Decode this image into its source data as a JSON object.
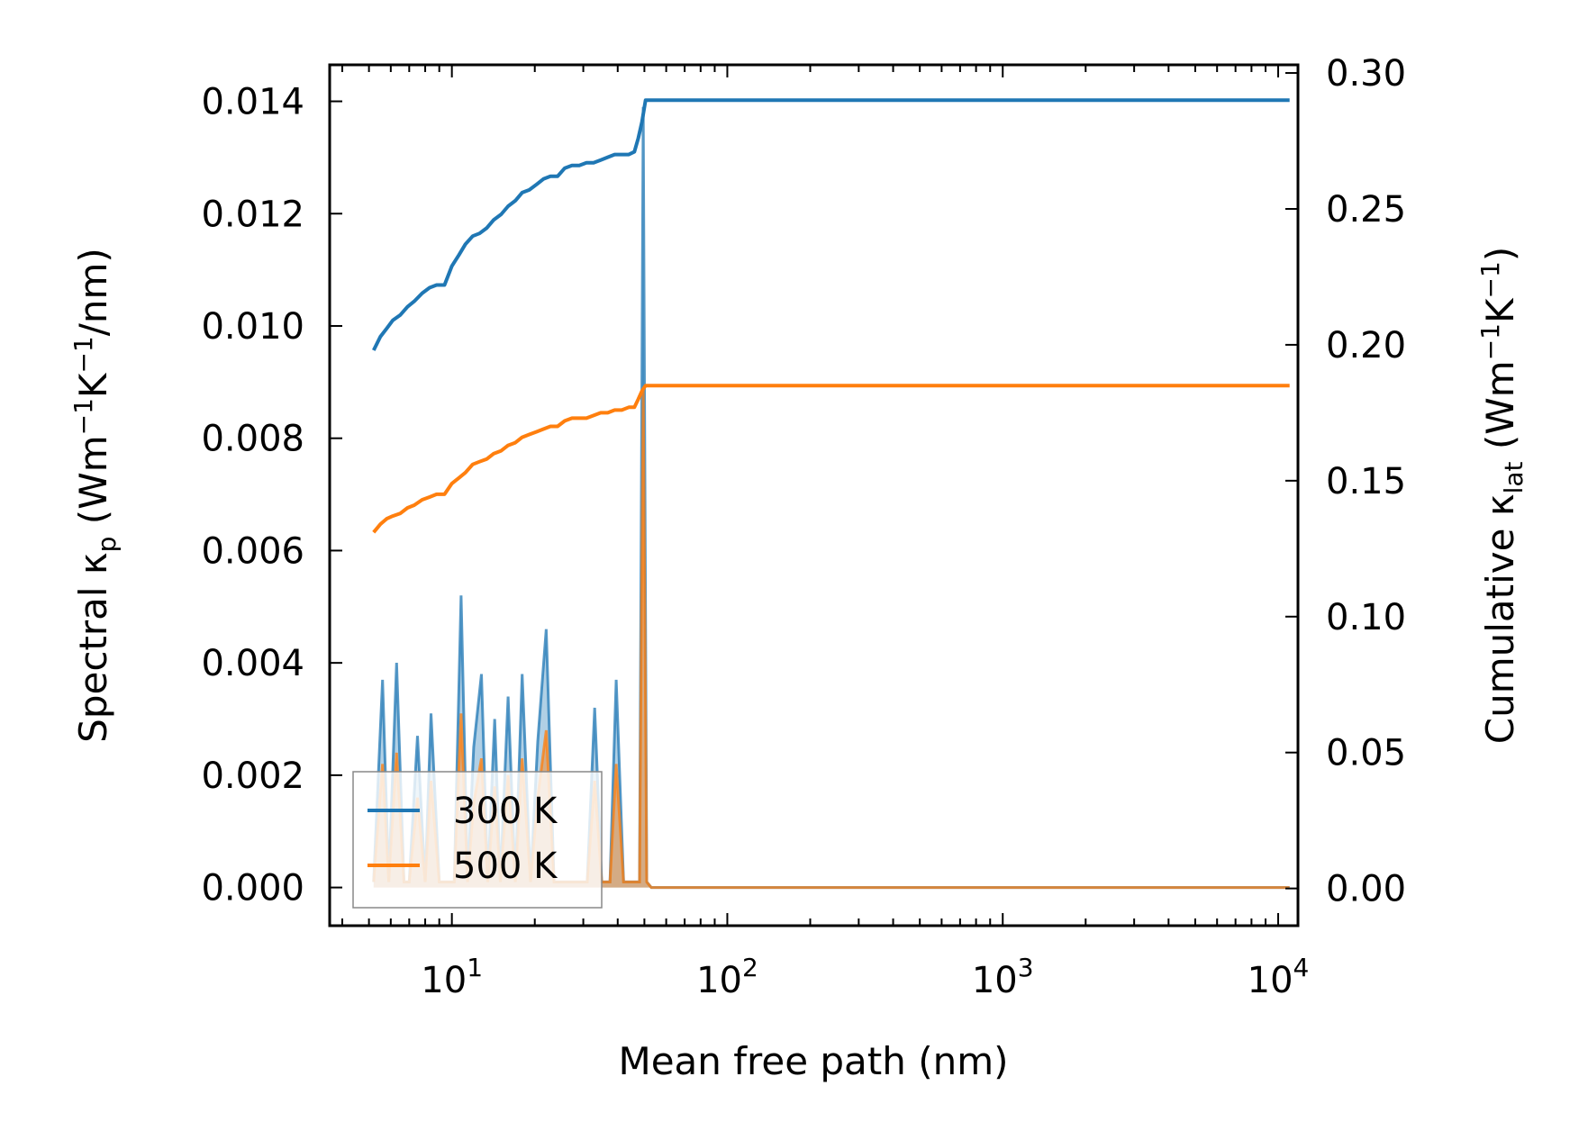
{
  "chart_data": {
    "type": "line",
    "xscale": "log",
    "xlim": [
      3.6,
      11800
    ],
    "ylim_left": [
      -0.00068,
      0.01465
    ],
    "ylim_right": [
      -0.0137,
      0.303
    ],
    "xlabel": "Mean free path (nm)",
    "ylabel_left_parts": [
      "Spectral κ",
      "p",
      " (Wm",
      "−1",
      "K",
      "−1",
      "/nm)"
    ],
    "ylabel_right_parts": [
      "Cumulative κ",
      "lat",
      " (Wm",
      "−1",
      "K",
      "−1",
      ")"
    ],
    "x_ticks": [
      {
        "value": 10,
        "base": "10",
        "exp": "1"
      },
      {
        "value": 100,
        "base": "10",
        "exp": "2"
      },
      {
        "value": 1000,
        "base": "10",
        "exp": "3"
      },
      {
        "value": 10000,
        "base": "10",
        "exp": "4"
      }
    ],
    "y_ticks_left": [
      {
        "value": 0.0,
        "label": "0.000"
      },
      {
        "value": 0.002,
        "label": "0.002"
      },
      {
        "value": 0.004,
        "label": "0.004"
      },
      {
        "value": 0.006,
        "label": "0.006"
      },
      {
        "value": 0.008,
        "label": "0.008"
      },
      {
        "value": 0.01,
        "label": "0.010"
      },
      {
        "value": 0.012,
        "label": "0.012"
      },
      {
        "value": 0.014,
        "label": "0.014"
      }
    ],
    "y_ticks_right": [
      {
        "value": 0.0,
        "label": "0.00"
      },
      {
        "value": 0.05,
        "label": "0.05"
      },
      {
        "value": 0.1,
        "label": "0.10"
      },
      {
        "value": 0.15,
        "label": "0.15"
      },
      {
        "value": 0.2,
        "label": "0.20"
      },
      {
        "value": 0.25,
        "label": "0.25"
      },
      {
        "value": 0.3,
        "label": "0.30"
      }
    ],
    "legend": {
      "placement": "lower-left",
      "entries": [
        "300 K",
        "500 K"
      ]
    },
    "series": [
      {
        "name": "300 K",
        "color": "#1f77b4",
        "spectral": {
          "x": [
            5.2,
            5.6,
            5.9,
            6.3,
            6.7,
            7.0,
            7.5,
            8.0,
            8.4,
            9.0,
            9.5,
            10.2,
            10.8,
            11.4,
            12.0,
            12.8,
            13.5,
            14.3,
            15.0,
            16.0,
            17.0,
            18.0,
            19.3,
            20.5,
            22.0,
            23.5,
            25.0,
            27.0,
            29.0,
            31.0,
            33.0,
            35.0,
            37.5,
            39.5,
            42.0,
            44.0,
            46.5,
            48.0,
            49.5,
            51.0,
            53.0,
            56.0,
            60.0,
            100.0,
            1000.0,
            11000.0
          ],
          "y": [
            0.0001,
            0.0037,
            0.0001,
            0.004,
            0.0001,
            0.0001,
            0.0027,
            0.0001,
            0.0031,
            0.0001,
            0.0001,
            0.0001,
            0.0052,
            0.0001,
            0.0025,
            0.0038,
            0.0001,
            0.003,
            0.0001,
            0.0034,
            0.0001,
            0.0038,
            0.0001,
            0.0026,
            0.0046,
            0.0001,
            0.0001,
            0.0001,
            0.0001,
            0.0001,
            0.0032,
            0.0001,
            0.0001,
            0.0037,
            0.0001,
            0.0001,
            0.0001,
            0.0001,
            0.0139,
            0.0001,
            0.0,
            0.0,
            0.0,
            0.0,
            0.0,
            0.0
          ]
        },
        "cumulative": {
          "x": [
            5.2,
            5.5,
            5.8,
            6.1,
            6.5,
            6.9,
            7.3,
            7.8,
            8.3,
            8.8,
            9.4,
            10.0,
            10.6,
            11.2,
            11.9,
            12.6,
            13.4,
            14.2,
            15.1,
            16.0,
            17.0,
            18.0,
            19.1,
            20.3,
            21.5,
            22.8,
            24.2,
            25.7,
            27.3,
            29.0,
            30.8,
            32.7,
            34.7,
            36.8,
            39.0,
            41.4,
            43.9,
            46.0,
            47.5,
            49.0,
            50.5,
            100.0,
            1000.0,
            11000.0
          ],
          "y": [
            0.198,
            0.203,
            0.206,
            0.209,
            0.211,
            0.214,
            0.216,
            0.219,
            0.221,
            0.222,
            0.222,
            0.229,
            0.233,
            0.237,
            0.24,
            0.241,
            0.243,
            0.246,
            0.248,
            0.251,
            0.253,
            0.256,
            0.257,
            0.259,
            0.261,
            0.262,
            0.262,
            0.265,
            0.266,
            0.266,
            0.267,
            0.267,
            0.268,
            0.269,
            0.27,
            0.27,
            0.27,
            0.271,
            0.276,
            0.282,
            0.29,
            0.29,
            0.29,
            0.29
          ]
        }
      },
      {
        "name": "500 K",
        "color": "#ff7f0e",
        "spectral": {
          "x": [
            5.2,
            5.6,
            5.9,
            6.3,
            6.7,
            7.0,
            7.5,
            8.0,
            8.4,
            9.0,
            9.5,
            10.2,
            10.8,
            11.4,
            12.0,
            12.8,
            13.5,
            14.3,
            15.0,
            16.0,
            17.0,
            18.0,
            19.3,
            20.5,
            22.0,
            23.5,
            25.0,
            27.0,
            29.0,
            31.0,
            33.0,
            35.0,
            37.5,
            39.5,
            42.0,
            44.0,
            46.5,
            48.0,
            49.5,
            51.0,
            53.0,
            56.0,
            60.0,
            100.0,
            1000.0,
            11000.0
          ],
          "y": [
            0.0001,
            0.0022,
            0.0001,
            0.0024,
            0.0001,
            0.0001,
            0.0016,
            0.0001,
            0.0019,
            0.0001,
            0.0001,
            0.0001,
            0.0031,
            0.0001,
            0.0015,
            0.0023,
            0.0001,
            0.0018,
            0.0001,
            0.002,
            0.0001,
            0.0023,
            0.0001,
            0.0016,
            0.0028,
            0.0001,
            0.0001,
            0.0001,
            0.0001,
            0.0001,
            0.0019,
            0.0001,
            0.0001,
            0.0022,
            0.0001,
            0.0001,
            0.0001,
            0.0001,
            0.0089,
            0.0001,
            0.0,
            0.0,
            0.0,
            0.0,
            0.0,
            0.0
          ]
        },
        "cumulative": {
          "x": [
            5.2,
            5.5,
            5.8,
            6.1,
            6.5,
            6.9,
            7.3,
            7.8,
            8.3,
            8.8,
            9.4,
            10.0,
            10.6,
            11.2,
            11.9,
            12.6,
            13.4,
            14.2,
            15.1,
            16.0,
            17.0,
            18.0,
            19.1,
            20.3,
            21.5,
            22.8,
            24.2,
            25.7,
            27.3,
            29.0,
            30.8,
            32.7,
            34.7,
            36.8,
            39.0,
            41.4,
            43.9,
            46.0,
            47.5,
            49.0,
            50.5,
            100.0,
            1000.0,
            11000.0
          ],
          "y": [
            0.131,
            0.134,
            0.136,
            0.137,
            0.138,
            0.14,
            0.141,
            0.143,
            0.144,
            0.145,
            0.145,
            0.149,
            0.151,
            0.153,
            0.156,
            0.157,
            0.158,
            0.16,
            0.161,
            0.163,
            0.164,
            0.166,
            0.167,
            0.168,
            0.169,
            0.17,
            0.17,
            0.172,
            0.173,
            0.173,
            0.173,
            0.174,
            0.175,
            0.175,
            0.176,
            0.176,
            0.177,
            0.177,
            0.18,
            0.183,
            0.185,
            0.185,
            0.185,
            0.185
          ]
        }
      }
    ]
  }
}
